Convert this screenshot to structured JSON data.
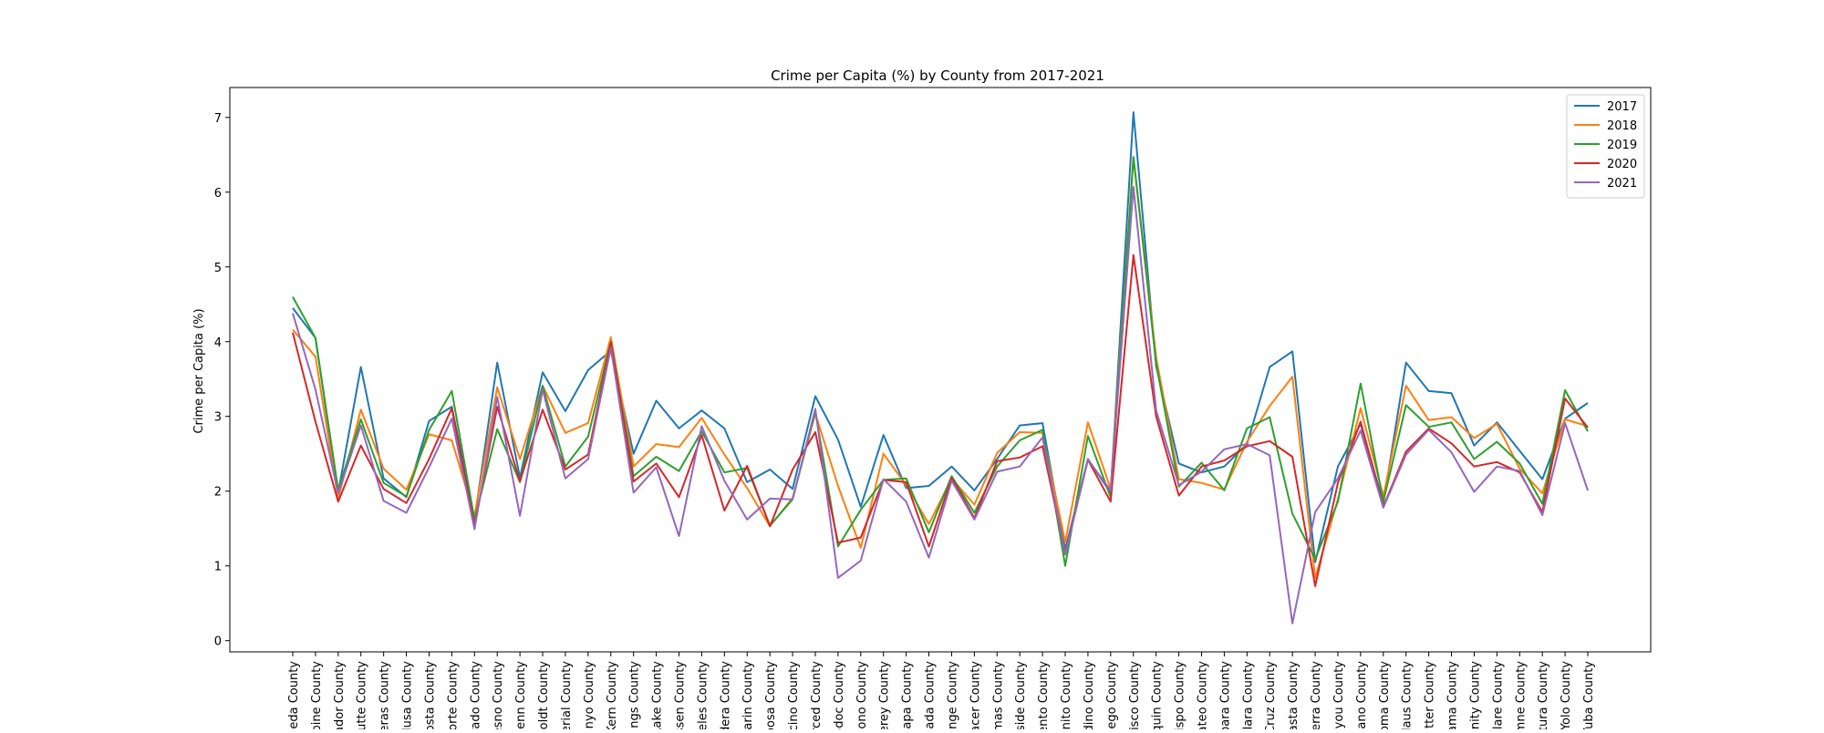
{
  "chart_data": {
    "type": "line",
    "title": "Crime per Capita (%) by County from 2017-2021",
    "xlabel": "",
    "ylabel": "Crime per Capita (%)",
    "ylim": [
      -0.15,
      7.4
    ],
    "yticks": [
      0,
      1,
      2,
      3,
      4,
      5,
      6,
      7
    ],
    "legend_position": "top-right",
    "grid": false,
    "categories": [
      "ameda County",
      "lpine County",
      "mador County",
      "Butte County",
      "veras County",
      "Colusa County",
      "Costa County",
      "Norte County",
      "orado County",
      "Fresno County",
      "Glenn County",
      "umboldt County",
      "perial County",
      "Inyo County",
      "Kern County",
      "Kings County",
      "Lake County",
      "assen County",
      "ngeles County",
      "adera County",
      "Marin County",
      "iposa County",
      "ocino County",
      "Merced County",
      "Modoc County",
      "Mono County",
      "terey County",
      "Napa County",
      "evada County",
      "ange County",
      "Placer County",
      "umas County",
      "rside County",
      "mento County",
      "Benito County",
      "rdino County",
      "Diego County",
      "ncisco County",
      "oaquin County",
      "Obispo County",
      "Mateo County",
      "Barbara County",
      "Clara County",
      "a Cruz County",
      "Shasta County",
      "Sierra County",
      "iskiyou County",
      "olano County",
      "noma County",
      "islaus County",
      "Sutter County",
      "ehama County",
      "rinity County",
      "Tulare County",
      "olumne County",
      "ntura County",
      "Yolo County",
      "Yuba County"
    ],
    "series": [
      {
        "name": "2017",
        "color": "#1f77b4",
        "values": [
          4.45,
          4.05,
          1.98,
          3.66,
          2.17,
          1.92,
          2.94,
          3.13,
          1.62,
          3.72,
          2.18,
          3.59,
          3.07,
          3.62,
          3.88,
          2.5,
          3.21,
          2.84,
          3.08,
          2.84,
          2.12,
          2.29,
          2.03,
          3.27,
          2.69,
          1.79,
          2.75,
          2.04,
          2.07,
          2.33,
          2.01,
          2.43,
          2.88,
          2.91,
          1.22,
          2.43,
          1.98,
          7.07,
          3.67,
          2.37,
          2.25,
          2.33,
          2.63,
          3.66,
          3.87,
          1.05,
          2.33,
          2.9,
          1.84,
          3.72,
          3.34,
          3.31,
          2.61,
          2.92,
          2.54,
          2.16,
          2.97,
          3.18
        ]
      },
      {
        "name": "2018",
        "color": "#ff7f0e",
        "values": [
          4.16,
          3.8,
          1.9,
          3.09,
          2.3,
          2.02,
          2.76,
          2.68,
          1.67,
          3.39,
          2.43,
          3.41,
          2.78,
          2.91,
          4.06,
          2.33,
          2.63,
          2.59,
          2.98,
          2.49,
          2.04,
          1.53,
          1.91,
          3.04,
          2.07,
          1.24,
          2.5,
          2.08,
          1.56,
          2.17,
          1.82,
          2.51,
          2.79,
          2.78,
          1.32,
          2.92,
          2.03,
          6.47,
          3.79,
          2.16,
          2.11,
          2.02,
          2.66,
          3.14,
          3.53,
          0.84,
          1.89,
          3.11,
          1.93,
          3.41,
          2.95,
          2.99,
          2.71,
          2.9,
          2.3,
          1.97,
          2.96,
          2.87
        ]
      },
      {
        "name": "2019",
        "color": "#2ca02c",
        "values": [
          4.6,
          4.05,
          2.02,
          2.96,
          2.11,
          1.93,
          2.82,
          3.34,
          1.62,
          2.83,
          2.12,
          3.41,
          2.33,
          2.73,
          4.0,
          2.2,
          2.46,
          2.27,
          2.8,
          2.25,
          2.31,
          1.54,
          1.89,
          3.07,
          1.26,
          1.75,
          2.15,
          2.17,
          1.45,
          2.2,
          1.71,
          2.33,
          2.68,
          2.82,
          1.0,
          2.74,
          1.92,
          6.47,
          3.71,
          2.06,
          2.38,
          2.01,
          2.84,
          2.99,
          1.7,
          1.09,
          1.86,
          3.44,
          1.86,
          3.15,
          2.86,
          2.92,
          2.43,
          2.66,
          2.37,
          1.83,
          3.35,
          2.8
        ]
      },
      {
        "name": "2020",
        "color": "#d62728",
        "values": [
          4.12,
          2.93,
          1.86,
          2.61,
          2.03,
          1.84,
          2.43,
          3.11,
          1.53,
          3.13,
          2.13,
          3.09,
          2.29,
          2.49,
          3.99,
          2.13,
          2.37,
          1.92,
          2.75,
          1.74,
          2.34,
          1.53,
          2.29,
          2.79,
          1.31,
          1.38,
          2.15,
          2.12,
          1.26,
          2.18,
          1.64,
          2.4,
          2.45,
          2.6,
          1.17,
          2.42,
          1.86,
          5.16,
          3.0,
          1.94,
          2.33,
          2.41,
          2.6,
          2.67,
          2.46,
          0.73,
          2.11,
          2.93,
          1.79,
          2.53,
          2.84,
          2.64,
          2.33,
          2.39,
          2.25,
          1.72,
          3.24,
          2.85
        ]
      },
      {
        "name": "2021",
        "color": "#9467bd",
        "values": [
          4.38,
          3.36,
          1.97,
          2.88,
          1.87,
          1.71,
          2.32,
          2.97,
          1.49,
          3.26,
          1.67,
          3.36,
          2.17,
          2.43,
          3.92,
          1.98,
          2.32,
          1.4,
          2.87,
          2.14,
          1.62,
          1.9,
          1.89,
          3.1,
          0.84,
          1.07,
          2.16,
          1.86,
          1.11,
          2.14,
          1.62,
          2.26,
          2.33,
          2.72,
          1.15,
          2.42,
          2.01,
          6.07,
          3.08,
          2.08,
          2.26,
          2.56,
          2.63,
          2.48,
          0.23,
          1.72,
          2.17,
          2.81,
          1.78,
          2.49,
          2.82,
          2.52,
          1.99,
          2.33,
          2.27,
          1.68,
          2.91,
          2.01
        ]
      }
    ]
  }
}
